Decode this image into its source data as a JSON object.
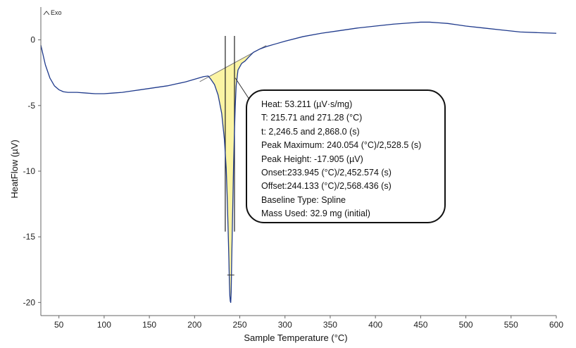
{
  "chart_data": {
    "type": "line",
    "title": "",
    "xlabel": "Sample Temperature (°C)",
    "ylabel": "HeatFlow (µV)",
    "xlim": [
      30,
      600
    ],
    "ylim": [
      -21,
      2.5
    ],
    "x_ticks": [
      50,
      100,
      150,
      200,
      250,
      300,
      350,
      400,
      450,
      500,
      550,
      600
    ],
    "y_ticks": [
      0,
      -5,
      -10,
      -15,
      -20
    ],
    "grid": false,
    "legend": "none",
    "exo_marker": "Exo",
    "series": [
      {
        "color": "#1f3a8c",
        "x": [
          30,
          32,
          35,
          40,
          45,
          50,
          55,
          60,
          65,
          70,
          80,
          90,
          100,
          110,
          120,
          130,
          140,
          150,
          160,
          170,
          180,
          190,
          200,
          210,
          215,
          218,
          222,
          226,
          230,
          233,
          235,
          236,
          237,
          238,
          238.5,
          239,
          239.5,
          240,
          240.5,
          241,
          242,
          243,
          244,
          245,
          246,
          248,
          252,
          256,
          260,
          265,
          272,
          280,
          290,
          300,
          320,
          340,
          360,
          380,
          400,
          420,
          440,
          450,
          460,
          470,
          480,
          490,
          500,
          520,
          540,
          560,
          580,
          600
        ],
        "y": [
          -0.4,
          -1.0,
          -1.9,
          -2.9,
          -3.5,
          -3.8,
          -3.95,
          -4.0,
          -4.0,
          -4.0,
          -4.05,
          -4.1,
          -4.1,
          -4.05,
          -4.0,
          -3.9,
          -3.8,
          -3.7,
          -3.6,
          -3.5,
          -3.35,
          -3.2,
          -3.0,
          -2.8,
          -2.75,
          -3.0,
          -3.4,
          -4.2,
          -5.6,
          -7.6,
          -9.8,
          -11.8,
          -14.2,
          -16.8,
          -18.5,
          -19.5,
          -19.9,
          -20.0,
          -19.2,
          -17.0,
          -13.5,
          -10.0,
          -7.2,
          -5.0,
          -3.5,
          -2.3,
          -1.8,
          -1.6,
          -1.3,
          -0.95,
          -0.7,
          -0.5,
          -0.3,
          -0.1,
          0.25,
          0.5,
          0.7,
          0.9,
          1.05,
          1.2,
          1.3,
          1.35,
          1.35,
          1.3,
          1.25,
          1.15,
          1.05,
          0.9,
          0.75,
          0.6,
          0.55,
          0.5
        ]
      }
    ],
    "peak_integration": {
      "fill_color": "#fbf4a4",
      "baseline_type": "Spline",
      "x_range": [
        215.71,
        271.28
      ],
      "peak_temperature": 240.054,
      "peak_height": -17.905
    },
    "annotation": {
      "lines": [
        "Heat: 53.211 (µV·s/mg)",
        "T: 215.71 and 271.28 (°C)",
        "t: 2,246.5 and 2,868.0 (s)",
        "Peak Maximum: 240.054 (°C)/2,528.5 (s)",
        "Peak Height: -17.905 (µV)",
        "Onset:233.945 (°C)/2,452.574 (s)",
        "Offset:244.133 (°C)/2,568.436 (s)",
        "Baseline Type: Spline",
        "Mass Used: 32.9 mg (initial)"
      ]
    }
  }
}
